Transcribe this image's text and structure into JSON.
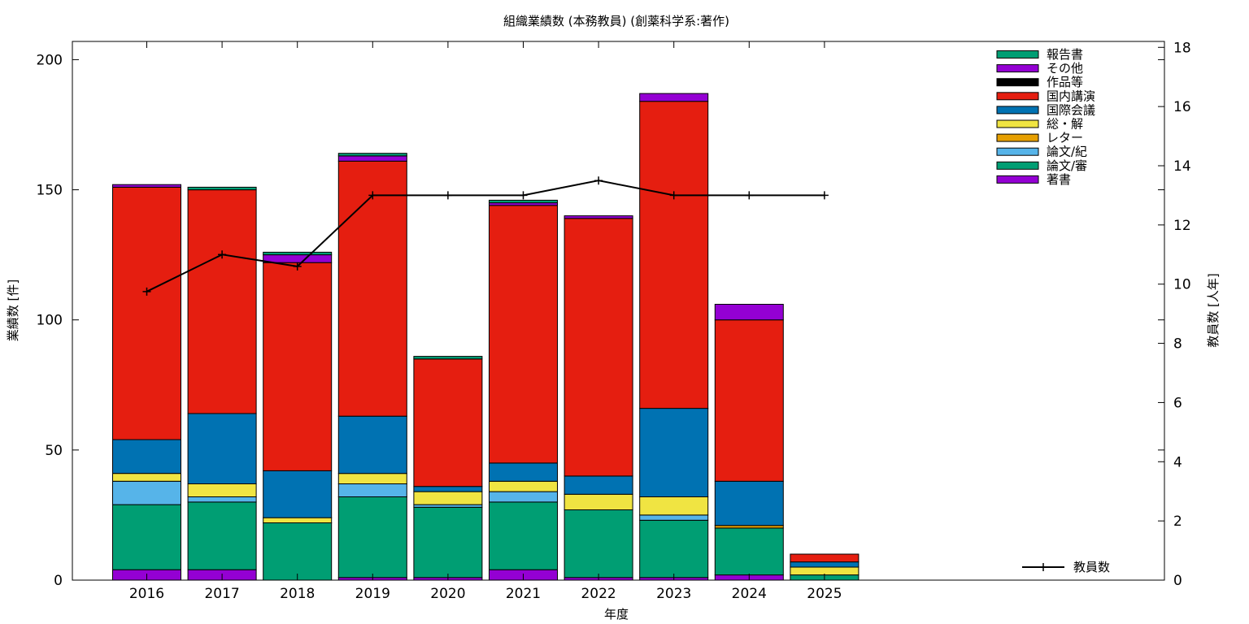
{
  "chart_data": {
    "type": "bar",
    "stacked": true,
    "title": "組織業績数 (本務教員) (創薬科学系:著作)",
    "xlabel": "年度",
    "ylabel": "業績数 [件]",
    "y2label": "教員数 [人年]",
    "categories": [
      "2016",
      "2017",
      "2018",
      "2019",
      "2020",
      "2021",
      "2022",
      "2023",
      "2024",
      "2025"
    ],
    "ylim": [
      0,
      207
    ],
    "y2lim": [
      0,
      18.2
    ],
    "yticks": [
      0,
      50,
      100,
      150,
      200
    ],
    "y2ticks": [
      0,
      2,
      4,
      6,
      8,
      10,
      12,
      14,
      16,
      18
    ],
    "legend_position": "top-right",
    "series": [
      {
        "name": "著書",
        "color": "#9400d3",
        "values": [
          4,
          4,
          0,
          1,
          1,
          4,
          1,
          1,
          2,
          0
        ]
      },
      {
        "name": "論文/審",
        "color": "#009e73",
        "values": [
          25,
          26,
          22,
          31,
          27,
          26,
          26,
          22,
          18,
          2
        ]
      },
      {
        "name": "論文/紀",
        "color": "#56b4e9",
        "values": [
          9,
          2,
          0,
          5,
          1,
          4,
          0,
          2,
          0,
          0
        ]
      },
      {
        "name": "レター",
        "color": "#e69f00",
        "values": [
          0,
          0,
          0,
          0,
          0,
          0,
          0,
          0,
          1,
          0
        ]
      },
      {
        "name": "総・解",
        "color": "#f0e442",
        "values": [
          3,
          5,
          2,
          4,
          5,
          4,
          6,
          7,
          0,
          3
        ]
      },
      {
        "name": "国際会議",
        "color": "#0072b2",
        "values": [
          13,
          27,
          18,
          22,
          2,
          7,
          7,
          34,
          17,
          2
        ]
      },
      {
        "name": "国内講演",
        "color": "#e51e10",
        "values": [
          97,
          86,
          80,
          98,
          49,
          99,
          99,
          118,
          62,
          3
        ]
      },
      {
        "name": "作品等",
        "color": "#000000",
        "values": [
          0,
          0,
          0,
          0,
          0,
          0,
          0,
          0,
          0,
          0
        ]
      },
      {
        "name": "その他",
        "color": "#9400d3",
        "values": [
          1,
          0,
          3,
          2,
          0,
          1,
          1,
          3,
          6,
          0
        ]
      },
      {
        "name": "報告書",
        "color": "#009e73",
        "values": [
          0,
          1,
          1,
          1,
          1,
          1,
          0,
          0,
          0,
          0
        ]
      }
    ],
    "line_series": {
      "name": "教員数",
      "axis": "right",
      "color": "#000000",
      "values": [
        9.75,
        11.0,
        10.6,
        13.0,
        13.0,
        13.0,
        13.5,
        13.0,
        13.0,
        13.0
      ]
    }
  }
}
